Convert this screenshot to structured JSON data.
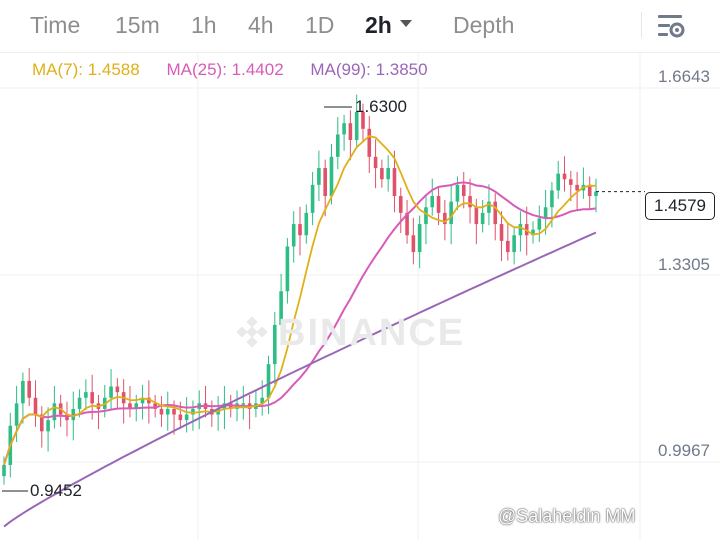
{
  "tabs": [
    {
      "label": "Time"
    },
    {
      "label": "15m"
    },
    {
      "label": "1h"
    },
    {
      "label": "4h"
    },
    {
      "label": "1D"
    },
    {
      "label": "2h",
      "active": true
    },
    {
      "label": "Depth"
    }
  ],
  "settings_icon": "chart-settings-icon",
  "ma": {
    "ma7": {
      "label": "MA(7): 1.4588",
      "color": "#e0b018"
    },
    "ma25": {
      "label": "MA(25): 1.4402",
      "color": "#d95bb8"
    },
    "ma99": {
      "label": "MA(99): 1.3850",
      "color": "#9a67b8"
    }
  },
  "price_axis": [
    "1.6643",
    "1.3305",
    "0.9967"
  ],
  "current_price": "1.4579",
  "annotations": {
    "high": "1.6300",
    "low": "0.9452"
  },
  "watermark": "BINANCE",
  "credit": "@Salaheldin MM",
  "colors": {
    "up": "#2ebd85",
    "down": "#e0526a",
    "grid": "#f0f0f0"
  },
  "chart_data": {
    "type": "candlestick",
    "timeframe": "2h",
    "y_ticks": [
      1.6643,
      1.3305,
      0.9967
    ],
    "last_price": 1.4579,
    "highest": 1.63,
    "lowest": 0.9452,
    "close_series": [
      0.97,
      1.04,
      1.08,
      1.12,
      1.09,
      1.06,
      1.03,
      1.05,
      1.08,
      1.06,
      1.05,
      1.07,
      1.09,
      1.1,
      1.08,
      1.07,
      1.09,
      1.11,
      1.1,
      1.08,
      1.07,
      1.08,
      1.09,
      1.08,
      1.07,
      1.06,
      1.07,
      1.06,
      1.05,
      1.06,
      1.07,
      1.08,
      1.07,
      1.06,
      1.07,
      1.08,
      1.07,
      1.08,
      1.08,
      1.07,
      1.08,
      1.09,
      1.15,
      1.22,
      1.28,
      1.36,
      1.4,
      1.38,
      1.42,
      1.47,
      1.5,
      1.45,
      1.52,
      1.56,
      1.58,
      1.55,
      1.6,
      1.57,
      1.52,
      1.5,
      1.48,
      1.5,
      1.45,
      1.42,
      1.38,
      1.35,
      1.4,
      1.43,
      1.45,
      1.42,
      1.4,
      1.44,
      1.47,
      1.45,
      1.43,
      1.4,
      1.42,
      1.44,
      1.4,
      1.37,
      1.35,
      1.38,
      1.4,
      1.38,
      1.39,
      1.41,
      1.43,
      1.46,
      1.49,
      1.48,
      1.47,
      1.46,
      1.47,
      1.45,
      1.4579
    ],
    "ma_lines": [
      {
        "name": "MA(7)",
        "last": 1.4588
      },
      {
        "name": "MA(25)",
        "last": 1.4402
      },
      {
        "name": "MA(99)",
        "last": 1.385
      }
    ]
  }
}
